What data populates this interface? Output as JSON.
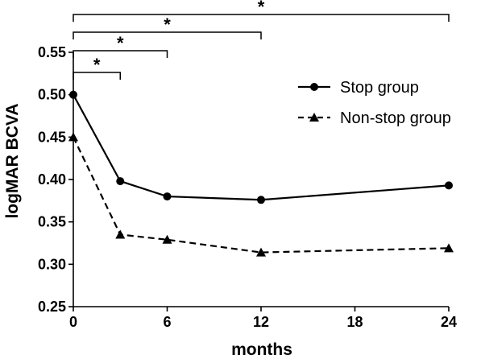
{
  "chart_data": {
    "type": "line",
    "title": "",
    "xlabel": "months",
    "ylabel": "logMAR BCVA",
    "xlim": [
      0,
      24
    ],
    "ylim": [
      0.25,
      0.55
    ],
    "x_ticks": [
      "0",
      "6",
      "12",
      "18",
      "24"
    ],
    "y_ticks": [
      "0.25",
      "0.30",
      "0.35",
      "0.40",
      "0.45",
      "0.50",
      "0.55"
    ],
    "grid": false,
    "legend_position": "right",
    "series": [
      {
        "name": "Stop group",
        "marker": "circle",
        "line_style": "solid",
        "color": "#000000",
        "x": [
          0,
          3,
          6,
          12,
          24
        ],
        "y": [
          0.5,
          0.398,
          0.38,
          0.376,
          0.393
        ]
      },
      {
        "name": "Non-stop group",
        "marker": "triangle",
        "line_style": "dashed",
        "color": "#000000",
        "x": [
          0,
          3,
          6,
          12,
          24
        ],
        "y": [
          0.45,
          0.335,
          0.329,
          0.314,
          0.319
        ]
      }
    ],
    "significance_brackets": [
      {
        "from": 0,
        "to": 3,
        "label": "*"
      },
      {
        "from": 0,
        "to": 6,
        "label": "*"
      },
      {
        "from": 0,
        "to": 12,
        "label": "*"
      },
      {
        "from": 0,
        "to": 24,
        "label": "*"
      }
    ]
  }
}
